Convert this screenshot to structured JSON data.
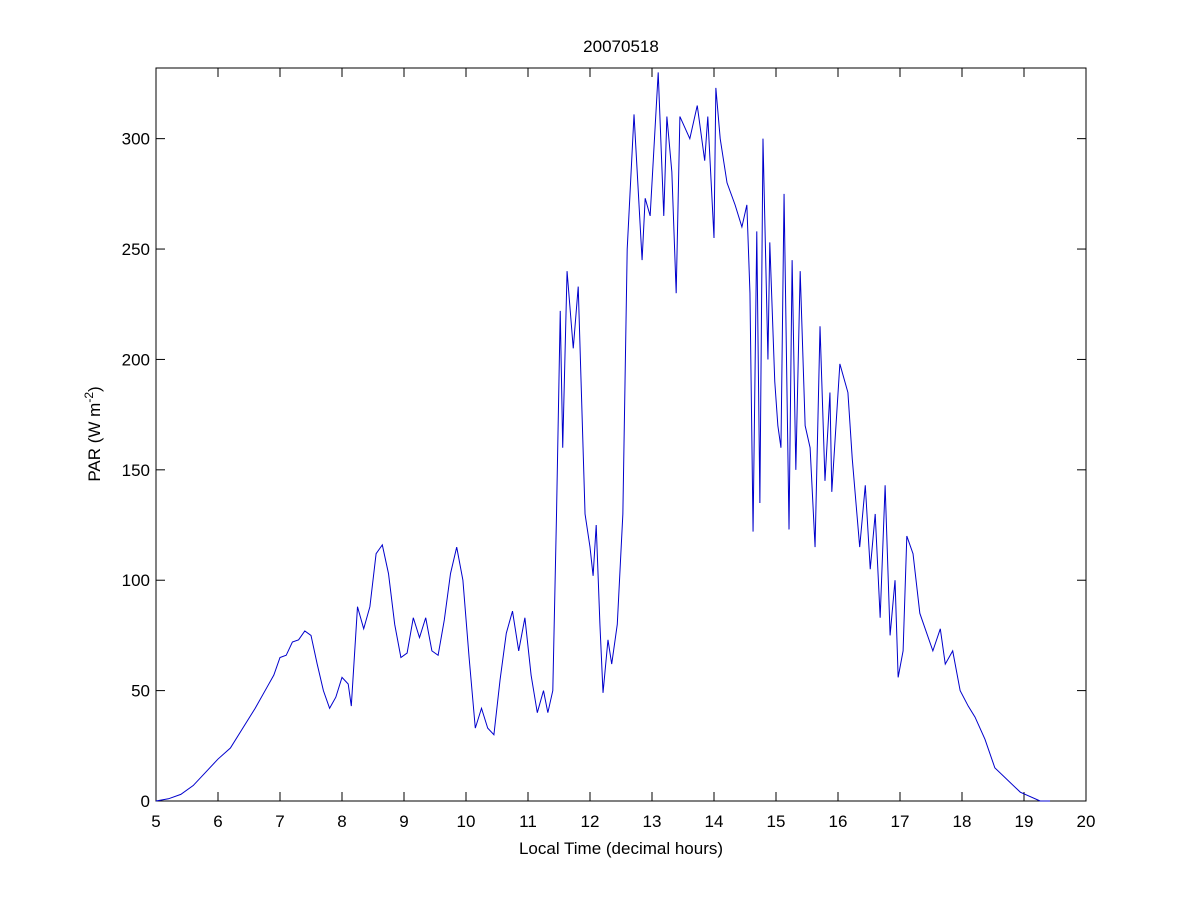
{
  "chart_data": {
    "type": "line",
    "title": "20070518",
    "x_label": "Local Time (decimal hours)",
    "y_label": [
      "PAR (W m",
      "-2",
      ")"
    ],
    "xlim": [
      5,
      20
    ],
    "ylim": [
      0,
      332
    ],
    "xticks": [
      5,
      6,
      7,
      8,
      9,
      10,
      11,
      12,
      13,
      14,
      15,
      16,
      17,
      18,
      19,
      20
    ],
    "yticks": [
      0,
      50,
      100,
      150,
      200,
      250,
      300
    ],
    "series": [
      {
        "color": "#0000cc",
        "x": [
          5.0,
          5.2,
          5.4,
          5.6,
          5.8,
          6.0,
          6.2,
          6.4,
          6.6,
          6.8,
          6.9,
          7.0,
          7.1,
          7.2,
          7.3,
          7.4,
          7.5,
          7.6,
          7.7,
          7.8,
          7.9,
          8.0,
          8.1,
          8.15,
          8.25,
          8.35,
          8.45,
          8.55,
          8.65,
          8.75,
          8.85,
          8.95,
          9.05,
          9.15,
          9.25,
          9.35,
          9.45,
          9.55,
          9.65,
          9.75,
          9.85,
          9.95,
          10.05,
          10.15,
          10.25,
          10.35,
          10.45,
          10.55,
          10.65,
          10.75,
          10.85,
          10.95,
          11.05,
          11.15,
          11.25,
          11.32,
          11.4,
          11.46,
          11.52,
          11.56,
          11.63,
          11.73,
          11.81,
          11.92,
          12.0,
          12.05,
          12.1,
          12.16,
          12.21,
          12.29,
          12.35,
          12.44,
          12.53,
          12.6,
          12.71,
          12.84,
          12.89,
          12.97,
          13.1,
          13.19,
          13.24,
          13.32,
          13.39,
          13.45,
          13.61,
          13.73,
          13.85,
          13.9,
          14.0,
          14.03,
          14.1,
          14.21,
          14.34,
          14.45,
          14.53,
          14.58,
          14.63,
          14.69,
          14.74,
          14.79,
          14.87,
          14.9,
          14.98,
          15.03,
          15.08,
          15.13,
          15.21,
          15.26,
          15.32,
          15.39,
          15.47,
          15.55,
          15.63,
          15.71,
          15.79,
          15.87,
          15.9,
          16.03,
          16.16,
          16.23,
          16.35,
          16.44,
          16.52,
          16.6,
          16.68,
          16.76,
          16.84,
          16.92,
          16.97,
          17.05,
          17.11,
          17.21,
          17.32,
          17.53,
          17.65,
          17.73,
          17.85,
          17.97,
          18.1,
          18.21,
          18.37,
          18.53,
          18.94,
          19.26,
          19.42
        ],
        "values": [
          0,
          1,
          3,
          7,
          13,
          19,
          24,
          33,
          42,
          52,
          57,
          65,
          66,
          72,
          73,
          77,
          75,
          62,
          50,
          42,
          47,
          56,
          53,
          43,
          88,
          78,
          88,
          112,
          116,
          103,
          80,
          65,
          67,
          83,
          74,
          83,
          68,
          66,
          82,
          103,
          115,
          100,
          65,
          33,
          42,
          33,
          30,
          55,
          76,
          86,
          68,
          83,
          57,
          40,
          50,
          40,
          50,
          130,
          222,
          160,
          240,
          205,
          233,
          130,
          115,
          102,
          125,
          80,
          49,
          73,
          62,
          80,
          130,
          250,
          311,
          245,
          273,
          265,
          330,
          265,
          310,
          285,
          230,
          310,
          300,
          315,
          290,
          310,
          255,
          323,
          300,
          280,
          270,
          260,
          270,
          230,
          122,
          258,
          135,
          300,
          200,
          253,
          190,
          170,
          160,
          275,
          123,
          245,
          150,
          240,
          170,
          160,
          115,
          215,
          145,
          185,
          140,
          198,
          185,
          155,
          115,
          143,
          105,
          130,
          83,
          143,
          75,
          100,
          56,
          68,
          120,
          112,
          85,
          68,
          78,
          62,
          68,
          50,
          43,
          38,
          28,
          15,
          4,
          0,
          0
        ]
      }
    ]
  }
}
